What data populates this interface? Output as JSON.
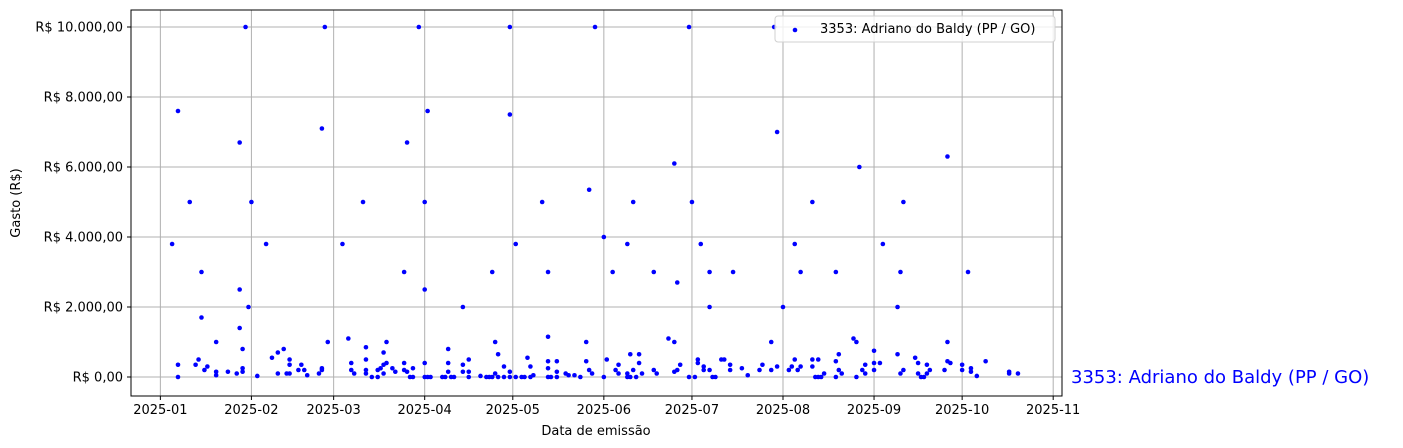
{
  "chart_data": {
    "type": "scatter",
    "xlabel": "Data de emissão",
    "ylabel": "Gasto (R$)",
    "xlim": [
      "2024-12-22",
      "2025-11-04"
    ],
    "ylim": [
      -543,
      10486
    ],
    "x_ticks": [
      "2025-01",
      "2025-02",
      "2025-03",
      "2025-04",
      "2025-05",
      "2025-06",
      "2025-07",
      "2025-08",
      "2025-09",
      "2025-10",
      "2025-11"
    ],
    "y_ticks": [
      0,
      2000,
      4000,
      6000,
      8000,
      10000
    ],
    "y_tick_labels": [
      "R$ 0,00",
      "R$ 2.000,00",
      "R$ 4.000,00",
      "R$ 6.000,00",
      "R$ 8.000,00",
      "R$ 10.000,00"
    ],
    "grid": true,
    "legend_placement": "top-right",
    "side_label": "3353: Adriano do Baldy (PP / GO)",
    "colors": {
      "series": "#0000ff",
      "grid": "#b0b0b0",
      "side_label": "#0000ff"
    },
    "series": [
      {
        "name": "3353: Adriano do Baldy (PP / GO)",
        "points": [
          [
            "2025-01-05",
            3800
          ],
          [
            "2025-01-07",
            7600
          ],
          [
            "2025-01-07",
            0
          ],
          [
            "2025-01-07",
            350
          ],
          [
            "2025-01-11",
            5000
          ],
          [
            "2025-01-13",
            350
          ],
          [
            "2025-01-14",
            500
          ],
          [
            "2025-01-15",
            3000
          ],
          [
            "2025-01-15",
            1700
          ],
          [
            "2025-01-16",
            200
          ],
          [
            "2025-01-17",
            300
          ],
          [
            "2025-01-20",
            1000
          ],
          [
            "2025-01-20",
            150
          ],
          [
            "2025-01-20",
            50
          ],
          [
            "2025-01-24",
            150
          ],
          [
            "2025-01-27",
            100
          ],
          [
            "2025-01-28",
            6700
          ],
          [
            "2025-01-28",
            2500
          ],
          [
            "2025-01-28",
            1400
          ],
          [
            "2025-01-29",
            800
          ],
          [
            "2025-01-29",
            250
          ],
          [
            "2025-01-29",
            150
          ],
          [
            "2025-01-30",
            10000
          ],
          [
            "2025-01-31",
            2000
          ],
          [
            "2025-02-01",
            5000
          ],
          [
            "2025-02-03",
            30
          ],
          [
            "2025-02-06",
            3800
          ],
          [
            "2025-02-08",
            550
          ],
          [
            "2025-02-10",
            700
          ],
          [
            "2025-02-10",
            100
          ],
          [
            "2025-02-12",
            800
          ],
          [
            "2025-02-13",
            100
          ],
          [
            "2025-02-14",
            500
          ],
          [
            "2025-02-14",
            350
          ],
          [
            "2025-02-14",
            100
          ],
          [
            "2025-02-17",
            200
          ],
          [
            "2025-02-18",
            350
          ],
          [
            "2025-02-19",
            200
          ],
          [
            "2025-02-20",
            50
          ],
          [
            "2025-02-24",
            100
          ],
          [
            "2025-02-25",
            200
          ],
          [
            "2025-02-25",
            250
          ],
          [
            "2025-02-25",
            7100
          ],
          [
            "2025-02-26",
            10000
          ],
          [
            "2025-02-27",
            1000
          ],
          [
            "2025-03-04",
            3800
          ],
          [
            "2025-03-06",
            1100
          ],
          [
            "2025-03-07",
            400
          ],
          [
            "2025-03-07",
            200
          ],
          [
            "2025-03-08",
            100
          ],
          [
            "2025-03-11",
            5000
          ],
          [
            "2025-03-12",
            850
          ],
          [
            "2025-03-12",
            500
          ],
          [
            "2025-03-12",
            200
          ],
          [
            "2025-03-12",
            100
          ],
          [
            "2025-03-14",
            0
          ],
          [
            "2025-03-16",
            200
          ],
          [
            "2025-03-16",
            0
          ],
          [
            "2025-03-17",
            250
          ],
          [
            "2025-03-18",
            700
          ],
          [
            "2025-03-18",
            350
          ],
          [
            "2025-03-18",
            100
          ],
          [
            "2025-03-19",
            1000
          ],
          [
            "2025-03-19",
            400
          ],
          [
            "2025-03-21",
            250
          ],
          [
            "2025-03-22",
            150
          ],
          [
            "2025-03-25",
            3000
          ],
          [
            "2025-03-25",
            400
          ],
          [
            "2025-03-25",
            200
          ],
          [
            "2025-03-26",
            6700
          ],
          [
            "2025-03-26",
            150
          ],
          [
            "2025-03-27",
            0
          ],
          [
            "2025-03-28",
            0
          ],
          [
            "2025-03-28",
            250
          ],
          [
            "2025-03-30",
            10000
          ],
          [
            "2025-04-01",
            5000
          ],
          [
            "2025-04-01",
            2500
          ],
          [
            "2025-04-01",
            400
          ],
          [
            "2025-04-01",
            0
          ],
          [
            "2025-04-02",
            7600
          ],
          [
            "2025-04-02",
            0
          ],
          [
            "2025-04-03",
            0
          ],
          [
            "2025-04-07",
            0
          ],
          [
            "2025-04-08",
            0
          ],
          [
            "2025-04-09",
            800
          ],
          [
            "2025-04-09",
            400
          ],
          [
            "2025-04-09",
            150
          ],
          [
            "2025-04-10",
            0
          ],
          [
            "2025-04-11",
            0
          ],
          [
            "2025-04-14",
            2000
          ],
          [
            "2025-04-14",
            350
          ],
          [
            "2025-04-14",
            150
          ],
          [
            "2025-04-16",
            500
          ],
          [
            "2025-04-16",
            150
          ],
          [
            "2025-04-16",
            0
          ],
          [
            "2025-04-20",
            30
          ],
          [
            "2025-04-22",
            0
          ],
          [
            "2025-04-23",
            0
          ],
          [
            "2025-04-24",
            3000
          ],
          [
            "2025-04-24",
            0
          ],
          [
            "2025-04-25",
            1000
          ],
          [
            "2025-04-25",
            100
          ],
          [
            "2025-04-26",
            650
          ],
          [
            "2025-04-26",
            0
          ],
          [
            "2025-04-28",
            300
          ],
          [
            "2025-04-28",
            0
          ],
          [
            "2025-04-30",
            10000
          ],
          [
            "2025-04-30",
            7500
          ],
          [
            "2025-04-30",
            150
          ],
          [
            "2025-04-30",
            0
          ],
          [
            "2025-05-02",
            3800
          ],
          [
            "2025-05-02",
            0
          ],
          [
            "2025-05-04",
            0
          ],
          [
            "2025-05-05",
            0
          ],
          [
            "2025-05-06",
            550
          ],
          [
            "2025-05-07",
            300
          ],
          [
            "2025-05-07",
            0
          ],
          [
            "2025-05-08",
            50
          ],
          [
            "2025-05-11",
            5000
          ],
          [
            "2025-05-13",
            3000
          ],
          [
            "2025-05-13",
            1150
          ],
          [
            "2025-05-13",
            450
          ],
          [
            "2025-05-13",
            250
          ],
          [
            "2025-05-13",
            0
          ],
          [
            "2025-05-14",
            0
          ],
          [
            "2025-05-16",
            450
          ],
          [
            "2025-05-16",
            150
          ],
          [
            "2025-05-16",
            0
          ],
          [
            "2025-05-19",
            100
          ],
          [
            "2025-05-20",
            50
          ],
          [
            "2025-05-22",
            50
          ],
          [
            "2025-05-24",
            0
          ],
          [
            "2025-05-26",
            1000
          ],
          [
            "2025-05-26",
            450
          ],
          [
            "2025-05-27",
            5350
          ],
          [
            "2025-05-27",
            200
          ],
          [
            "2025-05-28",
            100
          ],
          [
            "2025-05-29",
            10000
          ],
          [
            "2025-06-01",
            4000
          ],
          [
            "2025-06-01",
            0
          ],
          [
            "2025-06-02",
            500
          ],
          [
            "2025-06-04",
            3000
          ],
          [
            "2025-06-05",
            200
          ],
          [
            "2025-06-06",
            350
          ],
          [
            "2025-06-06",
            100
          ],
          [
            "2025-06-09",
            3800
          ],
          [
            "2025-06-09",
            100
          ],
          [
            "2025-06-09",
            0
          ],
          [
            "2025-06-10",
            650
          ],
          [
            "2025-06-10",
            0
          ],
          [
            "2025-06-11",
            5000
          ],
          [
            "2025-06-11",
            200
          ],
          [
            "2025-06-12",
            0
          ],
          [
            "2025-06-13",
            650
          ],
          [
            "2025-06-13",
            400
          ],
          [
            "2025-06-14",
            100
          ],
          [
            "2025-06-18",
            3000
          ],
          [
            "2025-06-18",
            200
          ],
          [
            "2025-06-19",
            100
          ],
          [
            "2025-06-23",
            1100
          ],
          [
            "2025-06-25",
            1000
          ],
          [
            "2025-06-25",
            6100
          ],
          [
            "2025-06-25",
            150
          ],
          [
            "2025-06-26",
            2700
          ],
          [
            "2025-06-26",
            200
          ],
          [
            "2025-06-27",
            350
          ],
          [
            "2025-06-30",
            10000
          ],
          [
            "2025-06-30",
            0
          ],
          [
            "2025-07-01",
            5000
          ],
          [
            "2025-07-02",
            0
          ],
          [
            "2025-07-03",
            500
          ],
          [
            "2025-07-03",
            400
          ],
          [
            "2025-07-04",
            3800
          ],
          [
            "2025-07-05",
            200
          ],
          [
            "2025-07-05",
            300
          ],
          [
            "2025-07-07",
            3000
          ],
          [
            "2025-07-07",
            2000
          ],
          [
            "2025-07-07",
            200
          ],
          [
            "2025-07-08",
            0
          ],
          [
            "2025-07-09",
            0
          ],
          [
            "2025-07-11",
            500
          ],
          [
            "2025-07-12",
            500
          ],
          [
            "2025-07-14",
            350
          ],
          [
            "2025-07-14",
            200
          ],
          [
            "2025-07-15",
            3000
          ],
          [
            "2025-07-18",
            250
          ],
          [
            "2025-07-20",
            50
          ],
          [
            "2025-07-24",
            200
          ],
          [
            "2025-07-25",
            350
          ],
          [
            "2025-07-28",
            1000
          ],
          [
            "2025-07-28",
            200
          ],
          [
            "2025-07-29",
            10000
          ],
          [
            "2025-07-30",
            7000
          ],
          [
            "2025-07-30",
            300
          ],
          [
            "2025-08-01",
            2000
          ],
          [
            "2025-08-03",
            200
          ],
          [
            "2025-08-04",
            300
          ],
          [
            "2025-08-05",
            500
          ],
          [
            "2025-08-05",
            3800
          ],
          [
            "2025-08-06",
            200
          ],
          [
            "2025-08-07",
            3000
          ],
          [
            "2025-08-07",
            300
          ],
          [
            "2025-08-11",
            5000
          ],
          [
            "2025-08-11",
            500
          ],
          [
            "2025-08-11",
            300
          ],
          [
            "2025-08-12",
            0
          ],
          [
            "2025-08-13",
            500
          ],
          [
            "2025-08-13",
            0
          ],
          [
            "2025-08-14",
            0
          ],
          [
            "2025-08-15",
            100
          ],
          [
            "2025-08-19",
            3000
          ],
          [
            "2025-08-19",
            450
          ],
          [
            "2025-08-19",
            0
          ],
          [
            "2025-08-20",
            650
          ],
          [
            "2025-08-20",
            200
          ],
          [
            "2025-08-21",
            100
          ],
          [
            "2025-08-25",
            1100
          ],
          [
            "2025-08-26",
            1000
          ],
          [
            "2025-08-26",
            0
          ],
          [
            "2025-08-27",
            6000
          ],
          [
            "2025-08-28",
            200
          ],
          [
            "2025-08-29",
            350
          ],
          [
            "2025-08-29",
            100
          ],
          [
            "2025-09-01",
            750
          ],
          [
            "2025-09-01",
            400
          ],
          [
            "2025-09-01",
            200
          ],
          [
            "2025-09-03",
            400
          ],
          [
            "2025-09-04",
            3800
          ],
          [
            "2025-09-09",
            2000
          ],
          [
            "2025-09-09",
            650
          ],
          [
            "2025-09-10",
            3000
          ],
          [
            "2025-09-10",
            100
          ],
          [
            "2025-09-11",
            5000
          ],
          [
            "2025-09-11",
            200
          ],
          [
            "2025-09-15",
            550
          ],
          [
            "2025-09-16",
            400
          ],
          [
            "2025-09-16",
            100
          ],
          [
            "2025-09-17",
            0
          ],
          [
            "2025-09-18",
            0
          ],
          [
            "2025-09-19",
            350
          ],
          [
            "2025-09-19",
            100
          ],
          [
            "2025-09-20",
            200
          ],
          [
            "2025-09-26",
            6300
          ],
          [
            "2025-09-26",
            1000
          ],
          [
            "2025-09-26",
            450
          ],
          [
            "2025-09-27",
            400
          ],
          [
            "2025-09-25",
            200
          ],
          [
            "2025-10-01",
            200
          ],
          [
            "2025-10-01",
            350
          ],
          [
            "2025-10-03",
            3000
          ],
          [
            "2025-10-04",
            250
          ],
          [
            "2025-10-04",
            150
          ],
          [
            "2025-10-06",
            30
          ],
          [
            "2025-10-09",
            450
          ],
          [
            "2025-10-17",
            100
          ],
          [
            "2025-10-17",
            150
          ],
          [
            "2025-10-20",
            100
          ]
        ]
      }
    ]
  }
}
